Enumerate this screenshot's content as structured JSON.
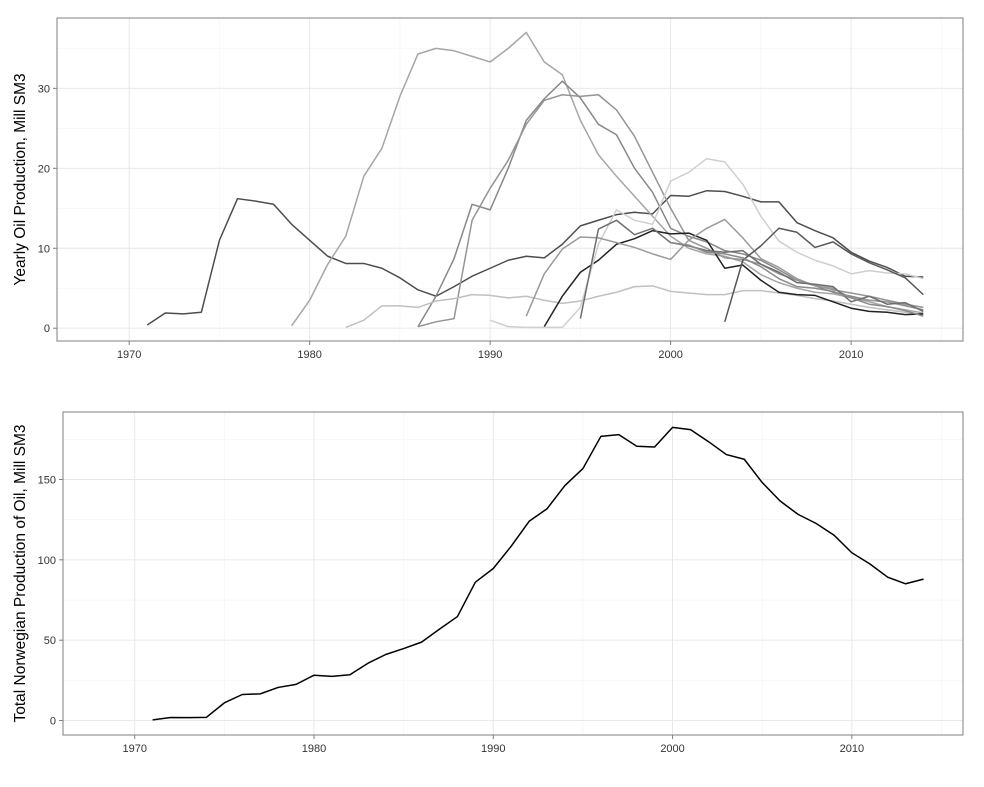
{
  "chart_data": [
    {
      "type": "line",
      "xlabel": "",
      "ylabel": "Yearly Oil Production, Mill SM3",
      "xlim": [
        1966.0,
        2016.2
      ],
      "ylim": [
        -1.6,
        38.8
      ],
      "xticks": [
        1970,
        1980,
        1990,
        2000,
        2010
      ],
      "yticks": [
        0,
        10,
        20,
        30
      ],
      "grid": true,
      "legend": "none",
      "series": [
        {
          "color": "#4d4d4d",
          "x": [
            1971,
            1972,
            1973,
            1974,
            1975,
            1976,
            1977,
            1978,
            1979,
            1980,
            1981,
            1982,
            1983,
            1984,
            1985,
            1986,
            1987,
            1988,
            1989,
            1990,
            1991,
            1992,
            1993,
            1994,
            1995,
            1996,
            1997,
            1998,
            1999,
            2000,
            2001,
            2002,
            2003,
            2004,
            2005,
            2006,
            2007,
            2008,
            2009,
            2010,
            2011,
            2012,
            2013,
            2014
          ],
          "y": [
            0.4,
            1.9,
            1.8,
            2.0,
            11.0,
            16.2,
            15.9,
            15.5,
            13.0,
            11.0,
            9.0,
            8.1,
            8.1,
            7.5,
            6.3,
            4.8,
            4.0,
            5.2,
            6.5,
            7.5,
            8.5,
            9.0,
            8.8,
            10.5,
            12.8,
            13.5,
            14.2,
            14.5,
            14.3,
            16.6,
            16.5,
            17.2,
            17.1,
            16.5,
            15.8,
            15.8,
            13.2,
            12.2,
            11.3,
            9.5,
            8.4,
            7.6,
            6.5,
            6.4
          ]
        },
        {
          "color": "#a6a6a6",
          "x": [
            1979,
            1980,
            1981,
            1982,
            1983,
            1984,
            1985,
            1986,
            1987,
            1988,
            1989,
            1990,
            1991,
            1992,
            1993,
            1994,
            1995,
            1996,
            1997,
            1998,
            1999,
            2000,
            2001,
            2002,
            2003,
            2004,
            2005,
            2006,
            2007,
            2008,
            2009,
            2010,
            2011,
            2012,
            2013,
            2014
          ],
          "y": [
            0.3,
            3.5,
            8.0,
            11.5,
            19.0,
            22.5,
            29.0,
            34.3,
            35.0,
            34.7,
            34.0,
            33.3,
            35.0,
            37.0,
            33.3,
            31.7,
            26.0,
            21.7,
            19.0,
            16.5,
            14.0,
            11.5,
            10.0,
            9.3,
            9.0,
            8.3,
            6.7,
            5.7,
            5.0,
            4.5,
            4.3,
            3.8,
            3.3,
            2.7,
            2.3,
            1.9
          ]
        },
        {
          "color": "#888888",
          "x": [
            1986,
            1987,
            1988,
            1989,
            1990,
            1991,
            1992,
            1993,
            1994,
            1995,
            1996,
            1997,
            1998,
            1999,
            2000,
            2001,
            2002,
            2003,
            2004,
            2005,
            2006,
            2007,
            2008,
            2009,
            2010,
            2011,
            2012,
            2013,
            2014
          ],
          "y": [
            0.2,
            4.0,
            8.7,
            15.5,
            14.8,
            20.0,
            26.0,
            28.7,
            30.9,
            28.8,
            25.5,
            24.2,
            20.0,
            17.0,
            12.5,
            11.5,
            10.8,
            9.7,
            9.3,
            8.5,
            7.3,
            6.0,
            5.3,
            4.5,
            4.0,
            3.5,
            3.3,
            2.8,
            2.3
          ]
        },
        {
          "color": "#959595",
          "x": [
            1986,
            1987,
            1988,
            1989,
            1990,
            1991,
            1992,
            1993,
            1994,
            1995,
            1996,
            1997,
            1998,
            1999,
            2000,
            2001,
            2002,
            2003,
            2004,
            2005,
            2006,
            2007,
            2008,
            2009,
            2010,
            2011,
            2012,
            2013,
            2014
          ],
          "y": [
            0.2,
            0.8,
            1.2,
            13.5,
            17.5,
            21.0,
            25.5,
            28.5,
            29.2,
            29.0,
            29.2,
            27.3,
            24.0,
            19.5,
            15.0,
            11.0,
            10.0,
            8.8,
            8.6,
            8.0,
            6.8,
            6.0,
            5.4,
            4.8,
            4.4,
            4.0,
            3.5,
            3.0,
            2.6
          ]
        },
        {
          "color": "#c0c0c0",
          "x": [
            1982,
            1983,
            1984,
            1985,
            1986,
            1987,
            1988,
            1989,
            1990,
            1991,
            1992,
            1993,
            1994,
            1995,
            1996,
            1997,
            1998,
            1999,
            2000,
            2001,
            2002,
            2003,
            2004,
            2005,
            2006,
            2007,
            2008,
            2009,
            2010,
            2011,
            2012,
            2013,
            2014
          ],
          "y": [
            0.1,
            1.0,
            2.8,
            2.8,
            2.6,
            3.4,
            3.7,
            4.2,
            4.1,
            3.8,
            4.0,
            3.5,
            3.1,
            3.4,
            4.0,
            4.5,
            5.2,
            5.3,
            4.6,
            4.4,
            4.2,
            4.2,
            4.7,
            4.7,
            4.4,
            4.1,
            3.7,
            3.4,
            3.0,
            2.6,
            2.3,
            2.0,
            1.7
          ]
        },
        {
          "color": "#222222",
          "x": [
            1993,
            1994,
            1995,
            1996,
            1997,
            1998,
            1999,
            2000,
            2001,
            2002,
            2003,
            2004,
            2005,
            2006,
            2007,
            2008,
            2009,
            2010,
            2011,
            2012,
            2013,
            2014
          ],
          "y": [
            0.2,
            4.0,
            7.0,
            8.5,
            10.5,
            11.2,
            12.2,
            11.8,
            11.9,
            11.0,
            7.5,
            7.9,
            6.0,
            4.5,
            4.2,
            4.1,
            3.3,
            2.5,
            2.1,
            2.0,
            1.7,
            1.8
          ]
        },
        {
          "color": "#cfcfcf",
          "x": [
            1990,
            1991,
            1992,
            1993,
            1994,
            1995,
            1996,
            1997,
            1998,
            1999,
            2000,
            2001,
            2002,
            2003,
            2004,
            2005,
            2006,
            2007,
            2008,
            2009,
            2010,
            2011,
            2012,
            2013,
            2014
          ],
          "y": [
            1.0,
            0.2,
            0.1,
            0.1,
            0.1,
            2.6,
            10.5,
            14.8,
            13.5,
            13.0,
            18.4,
            19.5,
            21.2,
            20.8,
            18.0,
            14.0,
            10.9,
            9.5,
            8.5,
            7.8,
            6.8,
            7.2,
            6.9,
            6.8,
            6.2
          ]
        },
        {
          "color": "#9a9a9a",
          "x": [
            1992,
            1993,
            1994,
            1995,
            1996,
            1997,
            1998,
            1999,
            2000,
            2001,
            2002,
            2003,
            2004,
            2005,
            2006,
            2007,
            2008,
            2009,
            2010,
            2011,
            2012,
            2013,
            2014
          ],
          "y": [
            1.5,
            6.8,
            9.9,
            11.4,
            11.3,
            10.7,
            10.1,
            9.3,
            8.6,
            11.0,
            12.5,
            13.6,
            11.3,
            8.7,
            7.6,
            6.2,
            5.3,
            5.0,
            3.8,
            3.5,
            3.3,
            3.0,
            2.6
          ]
        },
        {
          "color": "#6e6e6e",
          "x": [
            1995,
            1996,
            1997,
            1998,
            1999,
            2000,
            2001,
            2002,
            2003,
            2004,
            2005,
            2006,
            2007,
            2008,
            2009,
            2010,
            2011,
            2012,
            2013,
            2014
          ],
          "y": [
            1.2,
            12.4,
            13.5,
            11.7,
            12.5,
            10.7,
            10.3,
            9.7,
            9.5,
            9.7,
            8.0,
            7.0,
            5.7,
            5.5,
            5.2,
            3.3,
            4.0,
            3.0,
            3.2,
            2.1
          ]
        },
        {
          "color": "#575757",
          "x": [
            2003,
            2004,
            2005,
            2006,
            2007,
            2008,
            2009,
            2010,
            2011,
            2012,
            2013,
            2014
          ],
          "y": [
            0.8,
            8.5,
            10.3,
            12.5,
            12.0,
            10.1,
            10.8,
            9.3,
            8.2,
            7.3,
            6.3,
            4.2
          ]
        },
        {
          "color": "#8a8a8a",
          "x": [
            2000,
            2001,
            2002,
            2003,
            2004,
            2005,
            2006,
            2007,
            2008,
            2009,
            2010,
            2011,
            2012,
            2013,
            2014
          ],
          "y": [
            10.7,
            10.4,
            9.5,
            9.3,
            8.8,
            7.7,
            6.2,
            5.2,
            5.0,
            4.6,
            3.8,
            3.0,
            2.7,
            2.2,
            1.5
          ]
        }
      ]
    },
    {
      "type": "line",
      "xlabel": "",
      "ylabel": "Total Norwegian Production of Oil, Mill SM3",
      "xlim": [
        1966.0,
        2016.2
      ],
      "ylim": [
        -9.0,
        192.0
      ],
      "xticks": [
        1970,
        1980,
        1990,
        2000,
        2010
      ],
      "yticks": [
        0,
        50,
        100,
        150
      ],
      "grid": true,
      "legend": "none",
      "series": [
        {
          "color": "#000000",
          "x": [
            1971,
            1972,
            1973,
            1974,
            1975,
            1976,
            1977,
            1978,
            1979,
            1980,
            1981,
            1982,
            1983,
            1984,
            1985,
            1986,
            1987,
            1988,
            1989,
            1990,
            1991,
            1992,
            1993,
            1994,
            1995,
            1996,
            1997,
            1998,
            1999,
            2000,
            2001,
            2002,
            2003,
            2004,
            2005,
            2006,
            2007,
            2008,
            2009,
            2010,
            2011,
            2012,
            2013,
            2014
          ],
          "y": [
            0.4,
            1.9,
            1.8,
            2.0,
            11.0,
            16.2,
            16.6,
            20.6,
            22.5,
            28.2,
            27.5,
            28.5,
            35.6,
            41.1,
            44.8,
            48.8,
            56.9,
            64.7,
            86.1,
            94.6,
            108.5,
            124.0,
            131.8,
            146.3,
            156.8,
            176.8,
            177.9,
            170.7,
            170.2,
            182.4,
            181.0,
            173.6,
            165.5,
            162.6,
            148.1,
            136.6,
            128.3,
            122.7,
            115.4,
            104.4,
            97.5,
            89.2,
            85.1,
            88.0
          ]
        }
      ]
    }
  ]
}
